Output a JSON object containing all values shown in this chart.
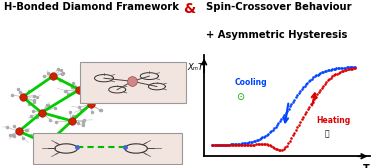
{
  "title_left": "H-Bonded Diamond Framework",
  "title_ampersand": "&",
  "title_right_line1": "Spin-Crossover Behaviour",
  "title_right_line2": "+ Asymmetric Hysteresis",
  "xlabel": "T",
  "ylabel": "XₘT",
  "cooling_label": "Cooling",
  "heating_label": "Heating",
  "bg_color": "#ffffff",
  "title_color": "#000000",
  "amp_color": "#cc0000",
  "cooling_color": "#0044ff",
  "heating_color": "#dd0000",
  "green_node": "#00cc00",
  "red_node": "#cc2200",
  "inset_bg": "#f2e4df"
}
